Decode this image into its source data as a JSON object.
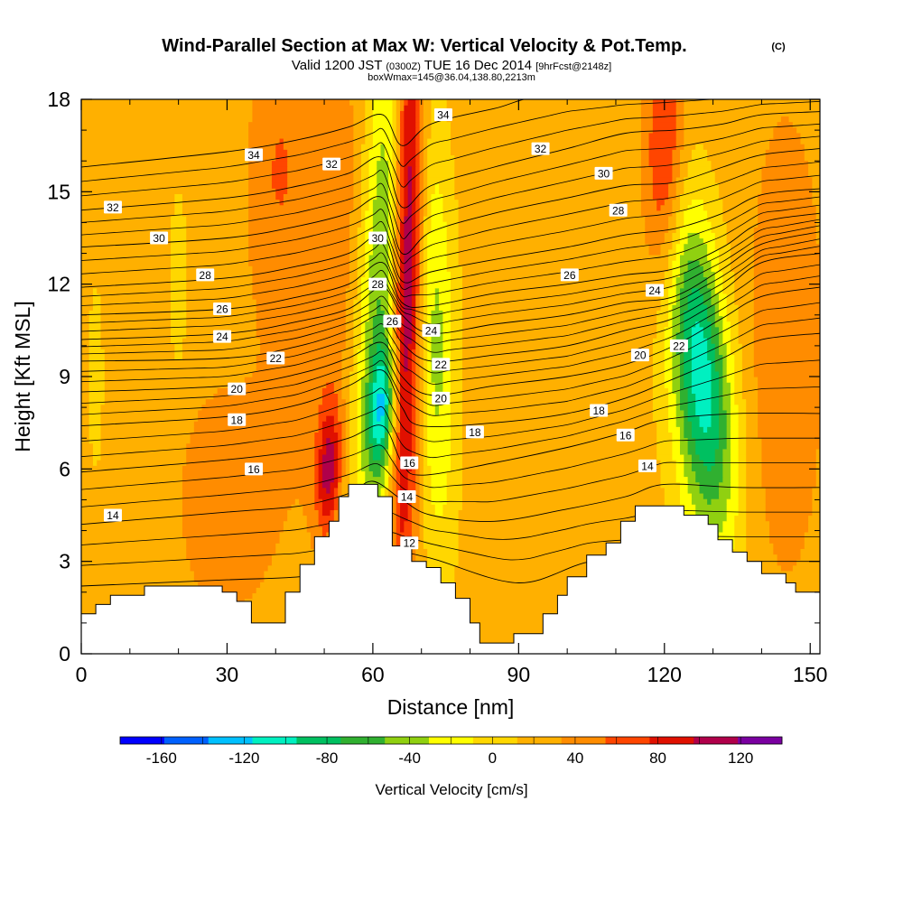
{
  "title": "Wind-Parallel Section at Max W: Vertical Velocity & Pot.Temp.",
  "title_mark": "(C)",
  "subtitle_parts": [
    "Valid 1200 JST",
    "(0300Z)",
    "TUE 16 Dec 2014",
    "[9hrFcst@2148z]"
  ],
  "subtitle2": "boxWmax=145@36.04,138.80,2213m",
  "chart_data": {
    "type": "heatmap",
    "xlabel": "Distance [nm]",
    "ylabel": "Height [Kft MSL]",
    "xlim": [
      0,
      152
    ],
    "ylim": [
      0,
      18
    ],
    "x_ticks": [
      "0",
      "30",
      "60",
      "90",
      "120",
      "150"
    ],
    "y_ticks": [
      "0",
      "3",
      "6",
      "9",
      "12",
      "15",
      "18"
    ],
    "colorbar": {
      "label": "Vertical Velocity [cm/s]",
      "bounds": [
        -180,
        140
      ],
      "step": 20,
      "tick_labels": [
        "-160",
        "-120",
        "-80",
        "-40",
        "0",
        "40",
        "80",
        "120"
      ],
      "colors": [
        "#0000ff",
        "#0060ff",
        "#00c0ff",
        "#00f0c0",
        "#00c060",
        "#30b030",
        "#90d010",
        "#ffff00",
        "#ffd700",
        "#ffb000",
        "#ff8c00",
        "#ff4500",
        "#e01000",
        "#b0004a",
        "#7a00a0"
      ]
    },
    "background_value": 10,
    "velocity_features": [
      {
        "x": 62,
        "y": 12,
        "sx": 4,
        "sy": 7,
        "amp": -90,
        "tilt": 0.28
      },
      {
        "x": 62,
        "y": 8,
        "sx": 2,
        "sy": 1.4,
        "amp": -80,
        "tilt": 0.25
      },
      {
        "x": 67,
        "y": 13,
        "sx": 2.2,
        "sy": 8,
        "amp": 120,
        "tilt": 0.12
      },
      {
        "x": 73,
        "y": 10,
        "sx": 2.8,
        "sy": 5,
        "amp": -55,
        "tilt": -0.1
      },
      {
        "x": 128,
        "y": 9,
        "sx": 4,
        "sy": 3.5,
        "amp": -85,
        "tilt": -0.55
      },
      {
        "x": 126,
        "y": 9,
        "sx": 5,
        "sy": 5,
        "amp": -40,
        "tilt": -0.5
      },
      {
        "x": 120,
        "y": 16,
        "sx": 3,
        "sy": 3,
        "amp": 65,
        "tilt": 0.05
      },
      {
        "x": 51,
        "y": 6,
        "sx": 1.8,
        "sy": 1.5,
        "amp": 75,
        "tilt": 0.2
      },
      {
        "x": 53,
        "y": 13,
        "sx": 8,
        "sy": 5,
        "amp": 30,
        "tilt": 0.25
      },
      {
        "x": 40,
        "y": 16,
        "sx": 4,
        "sy": 3,
        "amp": 25,
        "tilt": 0.2
      },
      {
        "x": 20,
        "y": 12,
        "sx": 1.2,
        "sy": 2,
        "amp": -30,
        "tilt": 0
      },
      {
        "x": 3,
        "y": 9,
        "sx": 1,
        "sy": 2,
        "amp": -30,
        "tilt": 0
      },
      {
        "x": 95,
        "y": 11,
        "sx": 10,
        "sy": 7,
        "amp": -8,
        "tilt": 0
      },
      {
        "x": 145,
        "y": 10,
        "sx": 5,
        "sy": 5,
        "amp": 30,
        "tilt": 0
      },
      {
        "x": 30,
        "y": 5,
        "sx": 8,
        "sy": 3,
        "amp": 20,
        "tilt": 0
      }
    ],
    "terrain": [
      [
        0,
        1.3
      ],
      [
        3,
        1.3
      ],
      [
        3,
        1.6
      ],
      [
        6,
        1.6
      ],
      [
        6,
        1.9
      ],
      [
        13,
        1.9
      ],
      [
        13,
        2.2
      ],
      [
        29,
        2.2
      ],
      [
        29,
        2.0
      ],
      [
        32,
        2.0
      ],
      [
        32,
        1.7
      ],
      [
        35,
        1.7
      ],
      [
        35,
        1.0
      ],
      [
        42,
        1.0
      ],
      [
        42,
        2.0
      ],
      [
        45,
        2.0
      ],
      [
        45,
        2.9
      ],
      [
        48,
        2.9
      ],
      [
        48,
        3.8
      ],
      [
        51,
        3.8
      ],
      [
        51,
        4.3
      ],
      [
        53,
        4.3
      ],
      [
        53,
        5.1
      ],
      [
        55,
        5.1
      ],
      [
        55,
        5.5
      ],
      [
        61,
        5.5
      ],
      [
        61,
        5.1
      ],
      [
        64,
        5.1
      ],
      [
        64,
        3.5
      ],
      [
        67,
        3.5
      ],
      [
        67,
        3.8
      ],
      [
        68,
        3.8
      ],
      [
        68,
        3.0
      ],
      [
        71,
        3.0
      ],
      [
        71,
        2.8
      ],
      [
        74,
        2.8
      ],
      [
        74,
        2.3
      ],
      [
        77,
        2.3
      ],
      [
        77,
        1.8
      ],
      [
        80,
        1.8
      ],
      [
        80,
        1.0
      ],
      [
        82,
        1.0
      ],
      [
        82,
        0.35
      ],
      [
        89,
        0.35
      ],
      [
        89,
        0.65
      ],
      [
        95,
        0.65
      ],
      [
        95,
        1.3
      ],
      [
        98,
        1.3
      ],
      [
        98,
        1.9
      ],
      [
        100,
        1.9
      ],
      [
        100,
        2.5
      ],
      [
        104,
        2.5
      ],
      [
        104,
        3.2
      ],
      [
        108,
        3.2
      ],
      [
        108,
        3.6
      ],
      [
        111,
        3.6
      ],
      [
        111,
        4.3
      ],
      [
        114,
        4.3
      ],
      [
        114,
        4.8
      ],
      [
        124,
        4.8
      ],
      [
        124,
        4.5
      ],
      [
        129,
        4.5
      ],
      [
        129,
        4.2
      ],
      [
        131,
        4.2
      ],
      [
        131,
        3.7
      ],
      [
        134,
        3.7
      ],
      [
        134,
        3.3
      ],
      [
        137,
        3.3
      ],
      [
        137,
        3.0
      ],
      [
        140,
        3.0
      ],
      [
        140,
        2.6
      ],
      [
        145,
        2.6
      ],
      [
        145,
        2.3
      ],
      [
        147,
        2.3
      ],
      [
        147,
        2.0
      ],
      [
        152,
        2.0
      ]
    ],
    "theta_contours": [
      {
        "level": 12,
        "label": "12",
        "nodes": [
          [
            0,
            2.2
          ],
          [
            30,
            2.4
          ],
          [
            45,
            2.5
          ],
          [
            60,
            2.8
          ],
          [
            64,
            3.3
          ],
          [
            72,
            3.1
          ],
          [
            90,
            2.3
          ],
          [
            105,
            3.0
          ],
          [
            120,
            3.0
          ],
          [
            152,
            3.0
          ]
        ]
      },
      {
        "level": 14,
        "label": "14",
        "nodes": [
          [
            0,
            4.2
          ],
          [
            30,
            4.6
          ],
          [
            45,
            4.8
          ],
          [
            55,
            5.2
          ],
          [
            60,
            5.6
          ],
          [
            66,
            5.0
          ],
          [
            72,
            4.5
          ],
          [
            85,
            4.3
          ],
          [
            100,
            4.7
          ],
          [
            112,
            5.1
          ],
          [
            120,
            5.5
          ],
          [
            135,
            5.4
          ],
          [
            152,
            5.4
          ]
        ]
      },
      {
        "level": 16,
        "label": "16",
        "nodes": [
          [
            0,
            5.9
          ],
          [
            30,
            6.3
          ],
          [
            45,
            6.6
          ],
          [
            55,
            7.0
          ],
          [
            62,
            7.4
          ],
          [
            66,
            6.2
          ],
          [
            70,
            5.8
          ],
          [
            85,
            6.2
          ],
          [
            100,
            6.7
          ],
          [
            112,
            7.2
          ],
          [
            120,
            7.6
          ],
          [
            135,
            7.8
          ],
          [
            152,
            7.8
          ]
        ]
      },
      {
        "level": 18,
        "label": "18",
        "nodes": [
          [
            0,
            7.4
          ],
          [
            30,
            7.7
          ],
          [
            45,
            8.1
          ],
          [
            55,
            8.7
          ],
          [
            62,
            9.2
          ],
          [
            66,
            8.0
          ],
          [
            70,
            7.4
          ],
          [
            85,
            7.5
          ],
          [
            100,
            7.8
          ],
          [
            112,
            8.3
          ],
          [
            120,
            8.8
          ],
          [
            132,
            9.6
          ],
          [
            140,
            10.2
          ],
          [
            152,
            10.4
          ]
        ]
      },
      {
        "level": 20,
        "label": "20",
        "nodes": [
          [
            0,
            8.5
          ],
          [
            30,
            8.7
          ],
          [
            45,
            9.1
          ],
          [
            55,
            9.6
          ],
          [
            62,
            10.1
          ],
          [
            66,
            9.0
          ],
          [
            72,
            8.4
          ],
          [
            85,
            8.7
          ],
          [
            100,
            9.0
          ],
          [
            112,
            9.4
          ],
          [
            122,
            10.0
          ],
          [
            132,
            10.9
          ],
          [
            140,
            11.6
          ],
          [
            152,
            11.9
          ]
        ]
      },
      {
        "level": 22,
        "label": "22",
        "nodes": [
          [
            0,
            9.5
          ],
          [
            30,
            9.6
          ],
          [
            45,
            10.0
          ],
          [
            55,
            10.5
          ],
          [
            62,
            11.0
          ],
          [
            66,
            10.1
          ],
          [
            72,
            9.5
          ],
          [
            85,
            9.7
          ],
          [
            100,
            10.0
          ],
          [
            112,
            10.5
          ],
          [
            122,
            10.9
          ],
          [
            132,
            11.8
          ],
          [
            140,
            12.7
          ],
          [
            152,
            13.0
          ]
        ]
      },
      {
        "level": 24,
        "label": "24",
        "nodes": [
          [
            0,
            10.2
          ],
          [
            30,
            10.4
          ],
          [
            45,
            10.8
          ],
          [
            55,
            11.2
          ],
          [
            62,
            11.9
          ],
          [
            66,
            11.0
          ],
          [
            72,
            10.4
          ],
          [
            85,
            10.7
          ],
          [
            100,
            11.0
          ],
          [
            112,
            11.4
          ],
          [
            122,
            11.6
          ],
          [
            132,
            12.5
          ],
          [
            140,
            13.3
          ],
          [
            152,
            13.7
          ]
        ]
      },
      {
        "level": 26,
        "label": "26",
        "nodes": [
          [
            0,
            11.0
          ],
          [
            30,
            11.2
          ],
          [
            45,
            11.6
          ],
          [
            55,
            12.0
          ],
          [
            62,
            12.7
          ],
          [
            66,
            11.4
          ],
          [
            72,
            11.3
          ],
          [
            85,
            11.7
          ],
          [
            100,
            12.0
          ],
          [
            112,
            12.3
          ],
          [
            122,
            12.5
          ],
          [
            132,
            13.2
          ],
          [
            140,
            14.0
          ],
          [
            152,
            14.3
          ]
        ]
      },
      {
        "level": 28,
        "label": "28",
        "nodes": [
          [
            0,
            11.9
          ],
          [
            30,
            12.2
          ],
          [
            45,
            12.6
          ],
          [
            55,
            13.0
          ],
          [
            62,
            13.6
          ],
          [
            66,
            12.1
          ],
          [
            72,
            12.4
          ],
          [
            85,
            12.8
          ],
          [
            100,
            13.2
          ],
          [
            112,
            13.6
          ],
          [
            122,
            13.8
          ],
          [
            132,
            14.3
          ],
          [
            140,
            14.9
          ],
          [
            152,
            15.1
          ]
        ]
      },
      {
        "level": 30,
        "label": "30",
        "nodes": [
          [
            0,
            13.2
          ],
          [
            30,
            13.5
          ],
          [
            45,
            13.9
          ],
          [
            55,
            14.3
          ],
          [
            62,
            14.8
          ],
          [
            66,
            13.0
          ],
          [
            72,
            13.7
          ],
          [
            85,
            14.3
          ],
          [
            100,
            14.8
          ],
          [
            112,
            15.2
          ],
          [
            122,
            15.3
          ],
          [
            132,
            15.8
          ],
          [
            140,
            16.2
          ],
          [
            152,
            16.4
          ]
        ]
      },
      {
        "level": 32,
        "label": "32",
        "nodes": [
          [
            0,
            14.4
          ],
          [
            30,
            14.8
          ],
          [
            45,
            15.2
          ],
          [
            55,
            15.6
          ],
          [
            62,
            16.1
          ],
          [
            66,
            14.5
          ],
          [
            72,
            15.2
          ],
          [
            85,
            15.8
          ],
          [
            100,
            16.4
          ],
          [
            112,
            16.9
          ],
          [
            122,
            17.0
          ],
          [
            132,
            17.2
          ],
          [
            140,
            17.5
          ],
          [
            152,
            17.6
          ]
        ]
      },
      {
        "level": 34,
        "label": "34",
        "nodes": [
          [
            0,
            15.8
          ],
          [
            30,
            16.3
          ],
          [
            45,
            16.7
          ],
          [
            55,
            17.1
          ],
          [
            62,
            17.5
          ],
          [
            66,
            16.5
          ],
          [
            72,
            17.2
          ],
          [
            85,
            17.7
          ],
          [
            100,
            18.2
          ],
          [
            152,
            18.6
          ]
        ]
      }
    ],
    "contour_labels": [
      {
        "text": "32",
        "x": 6.5,
        "y": 14.5
      },
      {
        "text": "30",
        "x": 16,
        "y": 13.5
      },
      {
        "text": "34",
        "x": 35.5,
        "y": 16.2
      },
      {
        "text": "28",
        "x": 25.5,
        "y": 12.3
      },
      {
        "text": "26",
        "x": 29,
        "y": 11.2
      },
      {
        "text": "24",
        "x": 29,
        "y": 10.3
      },
      {
        "text": "22",
        "x": 40,
        "y": 9.6
      },
      {
        "text": "20",
        "x": 32,
        "y": 8.6
      },
      {
        "text": "18",
        "x": 32,
        "y": 7.6
      },
      {
        "text": "16",
        "x": 35.5,
        "y": 6.0
      },
      {
        "text": "14",
        "x": 6.5,
        "y": 4.5
      },
      {
        "text": "32",
        "x": 51.5,
        "y": 15.9
      },
      {
        "text": "30",
        "x": 61,
        "y": 13.5
      },
      {
        "text": "28",
        "x": 61,
        "y": 12.0
      },
      {
        "text": "26",
        "x": 64,
        "y": 10.8
      },
      {
        "text": "24",
        "x": 72,
        "y": 10.5
      },
      {
        "text": "22",
        "x": 74,
        "y": 9.4
      },
      {
        "text": "20",
        "x": 74,
        "y": 8.3
      },
      {
        "text": "18",
        "x": 81,
        "y": 7.2
      },
      {
        "text": "16",
        "x": 67.5,
        "y": 6.2
      },
      {
        "text": "14",
        "x": 67,
        "y": 5.1
      },
      {
        "text": "12",
        "x": 67.5,
        "y": 3.6
      },
      {
        "text": "34",
        "x": 74.5,
        "y": 17.5
      },
      {
        "text": "32",
        "x": 94.5,
        "y": 16.4
      },
      {
        "text": "30",
        "x": 107.5,
        "y": 15.6
      },
      {
        "text": "28",
        "x": 110.5,
        "y": 14.4
      },
      {
        "text": "26",
        "x": 100.5,
        "y": 12.3
      },
      {
        "text": "24",
        "x": 118,
        "y": 11.8
      },
      {
        "text": "22",
        "x": 123,
        "y": 10.0
      },
      {
        "text": "20",
        "x": 115,
        "y": 9.7
      },
      {
        "text": "18",
        "x": 106.5,
        "y": 7.9
      },
      {
        "text": "16",
        "x": 112,
        "y": 7.1
      },
      {
        "text": "14",
        "x": 116.5,
        "y": 6.1
      }
    ]
  }
}
